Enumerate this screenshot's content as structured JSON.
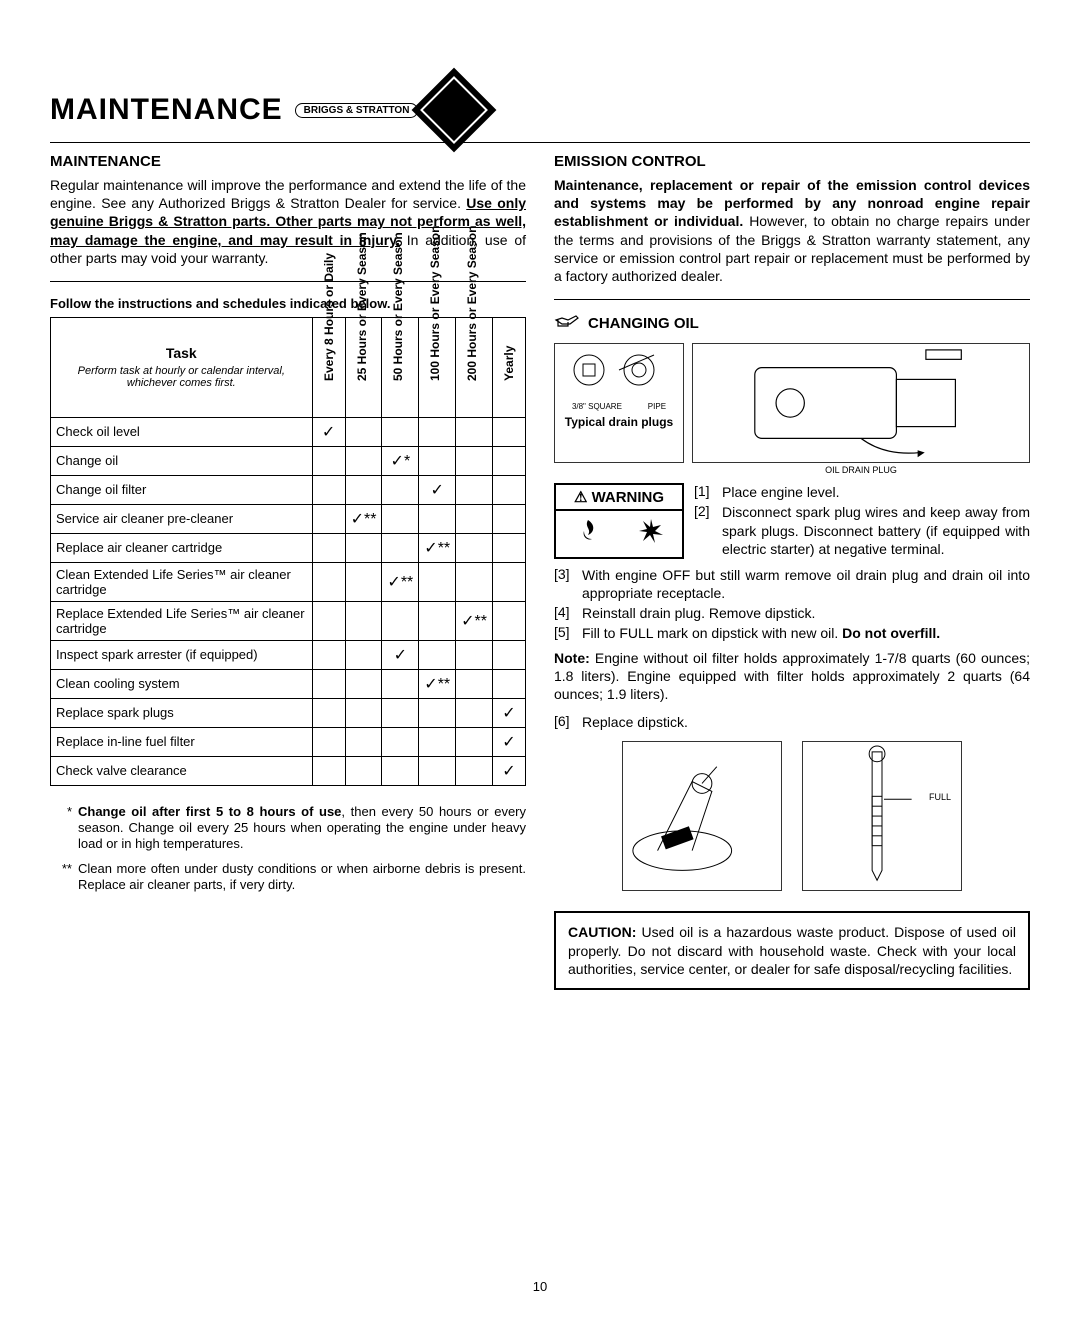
{
  "header": {
    "title": "MAINTENANCE",
    "brand": "BRIGGS & STRATTON"
  },
  "left": {
    "section_title": "MAINTENANCE",
    "intro_a": "Regular maintenance will improve the performance and extend the life of the engine. See any Authorized Briggs & Stratton Dealer for service. ",
    "intro_under": "Use only genuine Briggs & Stratton parts. Other parts may not perform as well, may damage the engine, and may result in injury.",
    "intro_b": " In addition, use of other parts may void your warranty.",
    "follow": "Follow the instructions and schedules indicated below.",
    "columns": {
      "task_head": "Task",
      "task_sub": "Perform task at hourly or calendar interval, whichever comes first.",
      "c1": "Every 8 Hours or Daily",
      "c2": "25 Hours or Every Season",
      "c3": "50 Hours or Every Season",
      "c4": "100 Hours or Every Season",
      "c5": "200 Hours or Every Season",
      "c6": "Yearly"
    },
    "rows": [
      {
        "task": "Check oil level",
        "marks": [
          "✓",
          "",
          "",
          "",
          "",
          ""
        ]
      },
      {
        "task": "Change oil",
        "marks": [
          "",
          "",
          "✓*",
          "",
          "",
          ""
        ]
      },
      {
        "task": "Change oil filter",
        "marks": [
          "",
          "",
          "",
          "✓",
          "",
          ""
        ]
      },
      {
        "task": "Service air cleaner pre-cleaner",
        "marks": [
          "",
          "✓**",
          "",
          "",
          "",
          ""
        ]
      },
      {
        "task": "Replace air cleaner cartridge",
        "marks": [
          "",
          "",
          "",
          "✓**",
          "",
          ""
        ]
      },
      {
        "task": "Clean Extended Life Series™ air cleaner cartridge",
        "marks": [
          "",
          "",
          "✓**",
          "",
          "",
          ""
        ]
      },
      {
        "task": "Replace Extended Life Series™ air cleaner cartridge",
        "marks": [
          "",
          "",
          "",
          "",
          "✓**",
          ""
        ]
      },
      {
        "task": "Inspect spark arrester (if equipped)",
        "marks": [
          "",
          "",
          "✓",
          "",
          "",
          ""
        ]
      },
      {
        "task": "Clean cooling system",
        "marks": [
          "",
          "",
          "",
          "✓**",
          "",
          ""
        ]
      },
      {
        "task": "Replace spark plugs",
        "marks": [
          "",
          "",
          "",
          "",
          "",
          "✓"
        ]
      },
      {
        "task": "Replace in-line fuel filter",
        "marks": [
          "",
          "",
          "",
          "",
          "",
          "✓"
        ]
      },
      {
        "task": "Check valve clearance",
        "marks": [
          "",
          "",
          "",
          "",
          "",
          "✓"
        ]
      }
    ],
    "fn1_mark": "*",
    "fn1_bold": "Change oil after first 5 to 8 hours of use",
    "fn1_rest": ", then every 50 hours or every season. Change oil every 25 hours when operating the engine under heavy load or in high temperatures.",
    "fn2_mark": "**",
    "fn2": "Clean more often under dusty conditions or when airborne debris is present. Replace air cleaner parts, if very dirty."
  },
  "right": {
    "emission_title": "EMISSION CONTROL",
    "emission_bold": "Maintenance, replacement or repair of the emission control devices and systems may be performed by any nonroad engine repair establishment or individual.",
    "emission_rest": " However, to obtain no charge repairs under the terms and provisions of the Briggs & Stratton warranty statement, any service or emission control part repair or replacement must be performed by a factory authorized dealer.",
    "changing_oil": "CHANGING OIL",
    "pipe": "PIPE",
    "square": "3/8\" SQUARE",
    "typical": "Typical drain plugs",
    "drain_plug": "OIL DRAIN PLUG",
    "warning": "WARNING",
    "s1n": "[1]",
    "s1": "Place engine level.",
    "s2n": "[2]",
    "s2": "Disconnect spark plug wires and keep away from spark plugs. Disconnect battery (if equipped with electric starter) at negative terminal.",
    "s3n": "[3]",
    "s3": "With engine OFF but still warm remove oil drain plug and drain oil into appropriate receptacle.",
    "s4n": "[4]",
    "s4": "Reinstall drain plug. Remove dipstick.",
    "s5n": "[5]",
    "s5a": "Fill to FULL mark on dipstick with new oil. ",
    "s5b": "Do not overfill.",
    "note_bold": "Note:",
    "note": " Engine without oil filter holds approximately 1-7/8 quarts (60 ounces; 1.8 liters). Engine equipped with filter holds approximately 2 quarts (64 ounces; 1.9 liters).",
    "s6n": "[6]",
    "s6": "Replace dipstick.",
    "full": "FULL",
    "caution_bold": "CAUTION:",
    "caution": " Used oil is a hazardous waste product. Dispose of used oil properly. Do not discard with household waste. Check with your local authorities, service center, or dealer for safe disposal/recycling facilities."
  },
  "page": "10"
}
